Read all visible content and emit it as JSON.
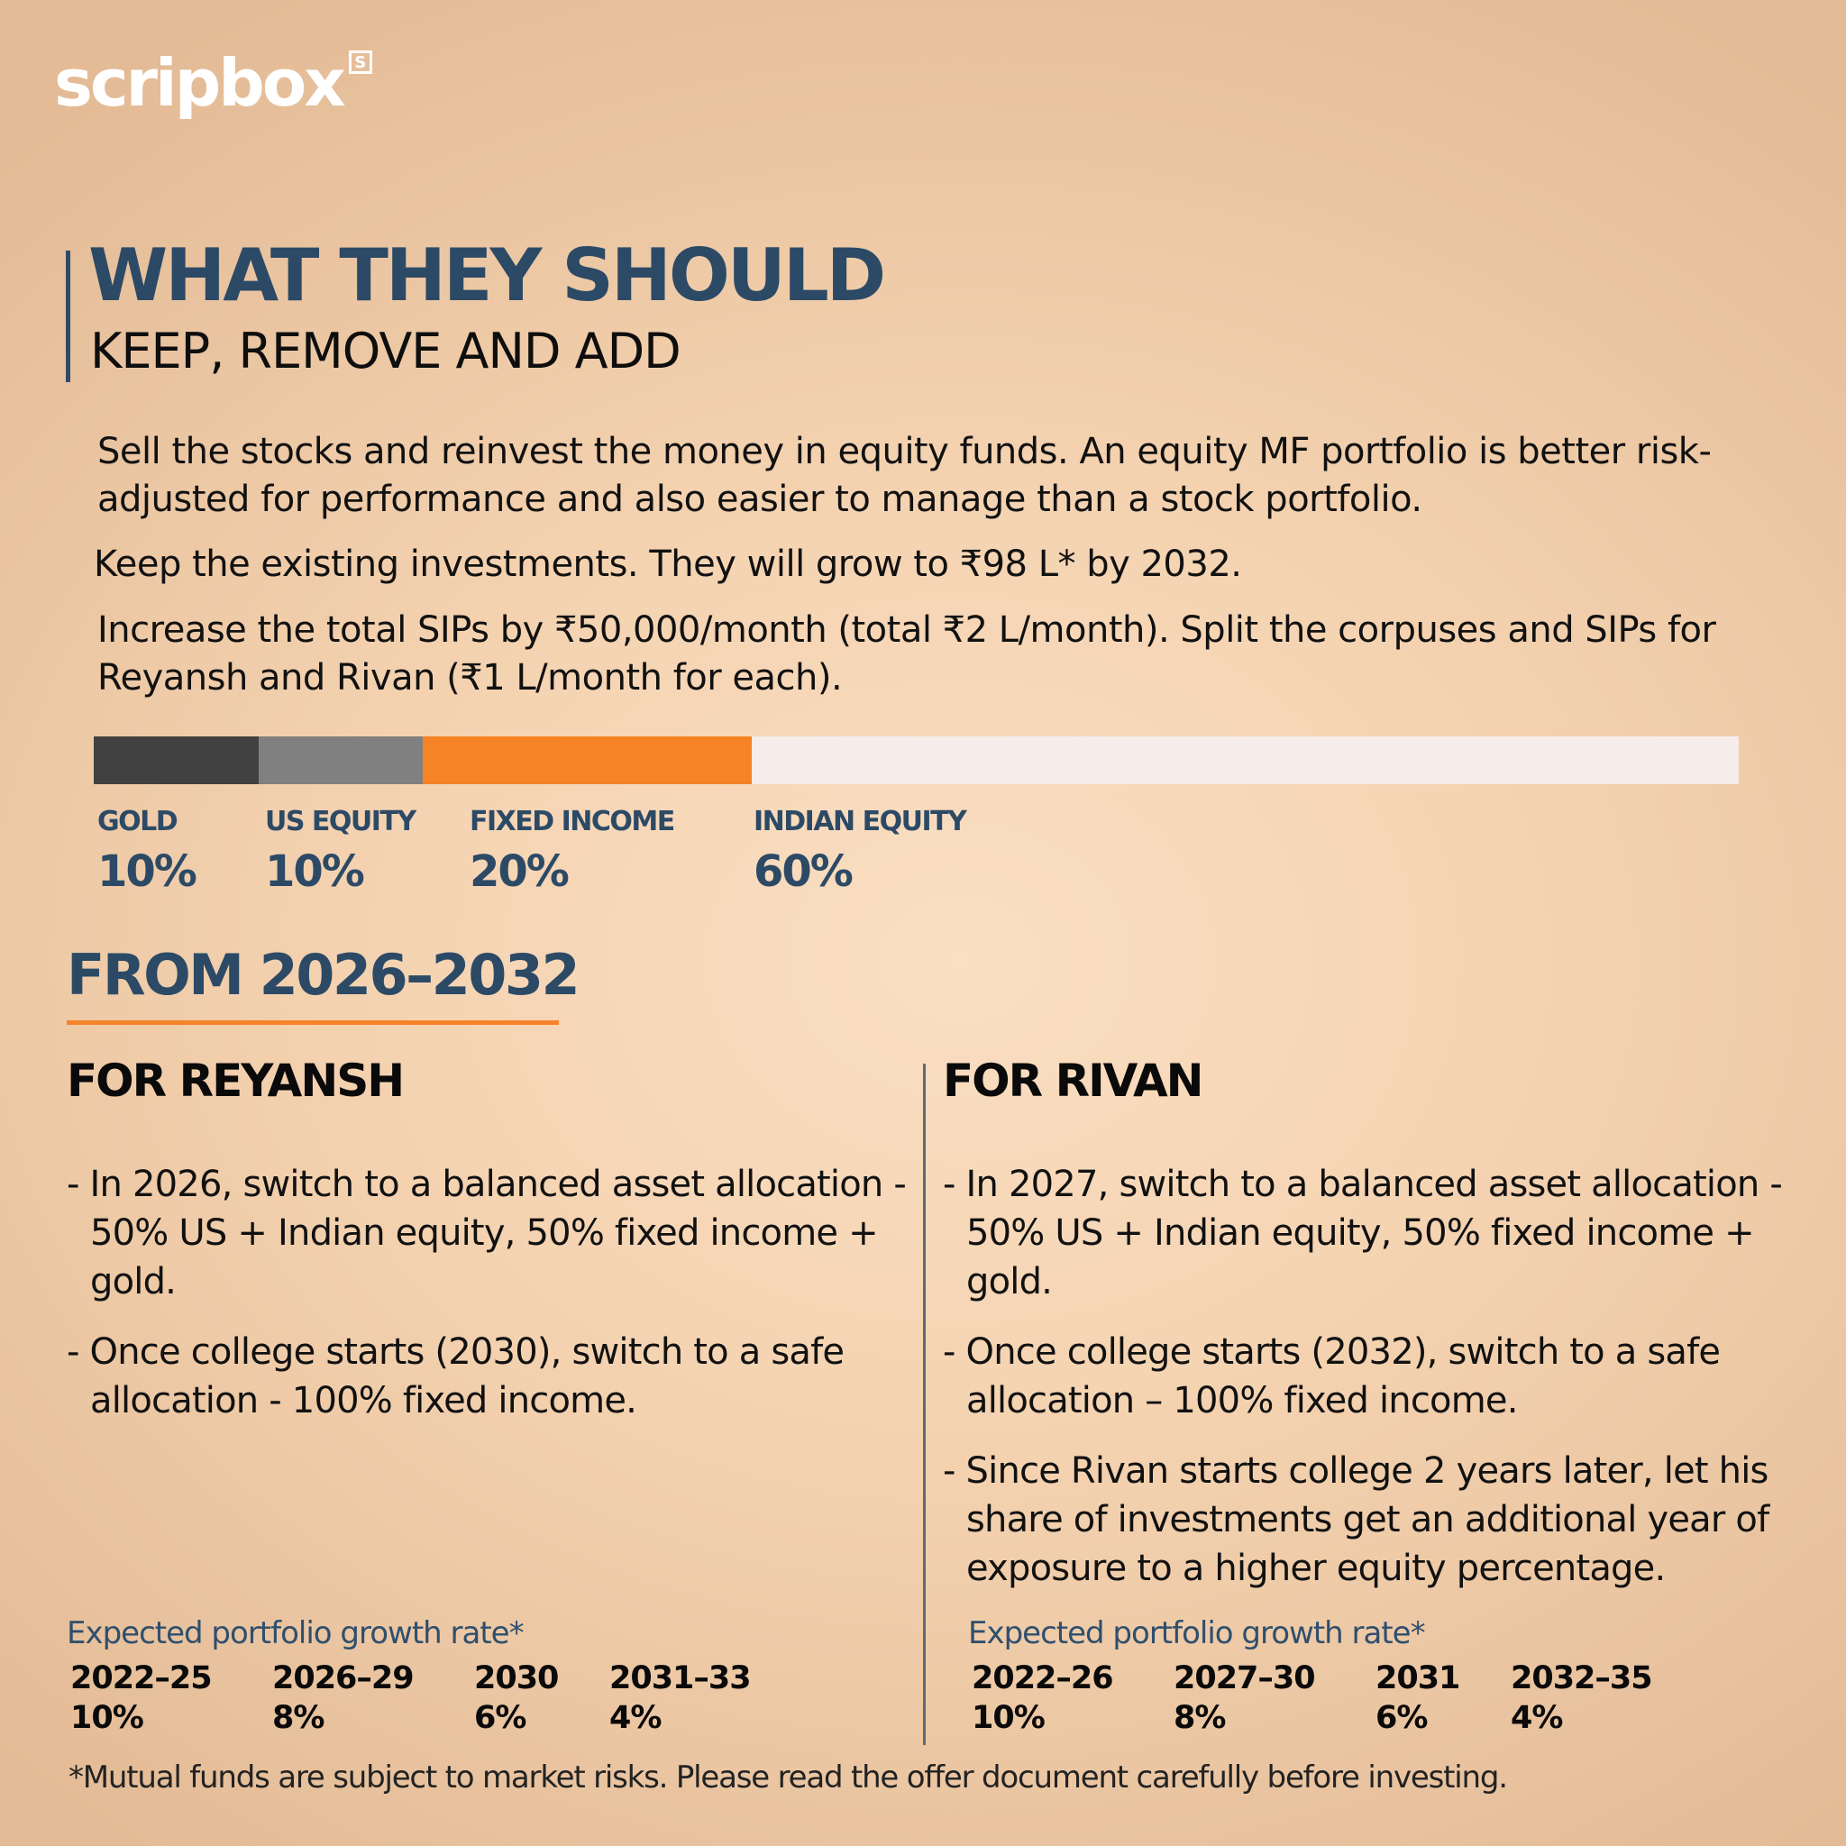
{
  "brand": {
    "name": "scripbox",
    "mark": "S"
  },
  "header": {
    "title": "WHAT THEY SHOULD",
    "subtitle": "KEEP, REMOVE AND ADD"
  },
  "paragraphs": [
    "Sell the stocks and reinvest the money in equity funds. An equity MF portfolio is better risk-adjusted for performance and also easier to manage than a stock portfolio.",
    "Keep the existing investments. They will grow to ₹98 L* by 2032.",
    "Increase the total SIPs by ₹50,000/month (total ₹2 L/month). Split the corpuses and SIPs for Reyansh and Rivan (₹1 L/month for each)."
  ],
  "allocation": {
    "segments": [
      {
        "label": "GOLD",
        "value": "10%",
        "percent": 10,
        "color": "#414141"
      },
      {
        "label": "US EQUITY",
        "value": "10%",
        "percent": 10,
        "color": "#808080"
      },
      {
        "label": "FIXED INCOME",
        "value": "20%",
        "percent": 20,
        "color": "#f68326"
      },
      {
        "label": "INDIAN EQUITY",
        "value": "60%",
        "percent": 60,
        "color": "#f6ecea"
      }
    ]
  },
  "section": {
    "title": "FROM 2026–2032",
    "accent": "#f5832a"
  },
  "reyansh": {
    "title": "FOR REYANSH",
    "bullets": [
      "- In 2026, switch to a balanced asset allocation - 50% US + Indian equity,  50% fixed income + gold.",
      "- Once college starts (2030), switch to a safe allocation - 100% fixed income."
    ],
    "growth": {
      "title": "Expected portfolio growth rate*",
      "periods": [
        "2022–25",
        "2026–29",
        "2030",
        "2031–33"
      ],
      "rates": [
        "10%",
        "8%",
        "6%",
        "4%"
      ]
    }
  },
  "rivan": {
    "title": "FOR RIVAN",
    "bullets": [
      "- In 2027, switch to a balanced asset allocation - 50% US + Indian equity,  50% fixed income + gold.",
      "- Once college starts (2032), switch to a safe allocation – 100% fixed income.",
      "- Since Rivan starts college 2 years later, let his share of investments get an additional year of exposure to a higher equity percentage."
    ],
    "growth": {
      "title": "Expected portfolio growth rate*",
      "periods": [
        "2022–26",
        "2027–30",
        "2031",
        "2032–35"
      ],
      "rates": [
        "10%",
        "8%",
        "6%",
        "4%"
      ]
    }
  },
  "disclaimer": "*Mutual funds are subject to market risks. Please read the offer document carefully before investing."
}
